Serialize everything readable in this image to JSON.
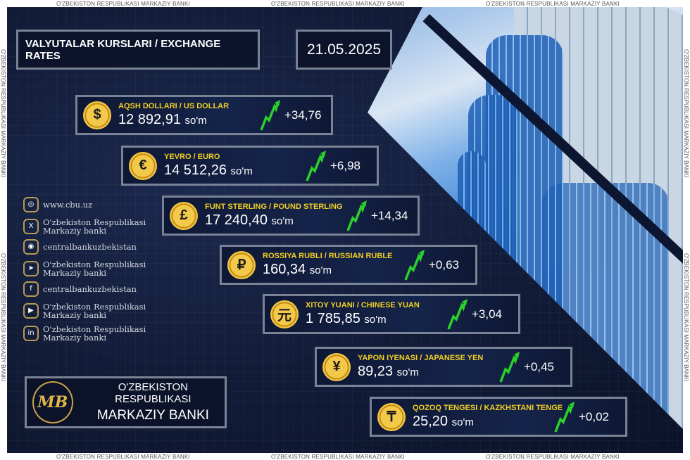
{
  "watermark": "O'ZBEKISTON RESPUBLIKASI MARKAZIY BANKI",
  "header": {
    "title": "VALYUTALAR KURSLARI / EXCHANGE RATES",
    "date": "21.05.2025"
  },
  "currency_unit": "so'm",
  "colors": {
    "background": "#121c38",
    "currency_name": "#f2d024",
    "up_arrow": "#2bd12b",
    "coin": "#f3c94a"
  },
  "rates": [
    {
      "name": "AQSH DOLLARI / US DOLLAR",
      "value": "12 892,91",
      "change": "+34,76",
      "icon": "dollar-icon",
      "symbol": "$"
    },
    {
      "name": "YEVRO / EURO",
      "value": "14 512,26",
      "change": "+6,98",
      "icon": "euro-icon",
      "symbol": "€"
    },
    {
      "name": "FUNT STERLING / POUND STERLING",
      "value": "17 240,40",
      "change": "+14,34",
      "icon": "pound-icon",
      "symbol": "£"
    },
    {
      "name": "ROSSIYA RUBLI / RUSSIAN RUBLE",
      "value": "160,34",
      "change": "+0,63",
      "icon": "ruble-icon",
      "symbol": "₽"
    },
    {
      "name": "XITOY YUANI / CHINESE YUAN",
      "value": "1 785,85",
      "change": "+3,04",
      "icon": "yuan-icon",
      "symbol": "元"
    },
    {
      "name": "YAPON IYENASI / JAPANESE YEN",
      "value": "89,23",
      "change": "+0,45",
      "icon": "yen-icon",
      "symbol": "¥"
    },
    {
      "name": "QOZOQ TENGESI / KAZKHSTANI TENGE",
      "value": "25,20",
      "change": "+0,02",
      "icon": "tenge-icon",
      "symbol": "₸"
    }
  ],
  "social": [
    {
      "icon": "globe-icon",
      "glyph": "◎",
      "line1": "www.cbu.uz",
      "line2": ""
    },
    {
      "icon": "x-icon",
      "glyph": "X",
      "line1": "O'zbekiston Respublikasi",
      "line2": "Markaziy banki"
    },
    {
      "icon": "instagram-icon",
      "glyph": "◉",
      "line1": "centralbankuzbekistan",
      "line2": ""
    },
    {
      "icon": "telegram-icon",
      "glyph": "➤",
      "line1": "O'zbekiston Respublikasi",
      "line2": "Markaziy banki"
    },
    {
      "icon": "facebook-icon",
      "glyph": "f",
      "line1": "centralbankuzbekistan",
      "line2": ""
    },
    {
      "icon": "youtube-icon",
      "glyph": "▶",
      "line1": "O'zbekiston Respublikasi",
      "line2": "Markaziy banki"
    },
    {
      "icon": "linkedin-icon",
      "glyph": "in",
      "line1": "O'zbekiston Respublikasi",
      "line2": "Markaziy banki"
    }
  ],
  "logo": {
    "line1": "O'ZBEKISTON RESPUBLIKASI",
    "line2": "MARKAZIY BANKI",
    "emblem_text": "MB"
  }
}
